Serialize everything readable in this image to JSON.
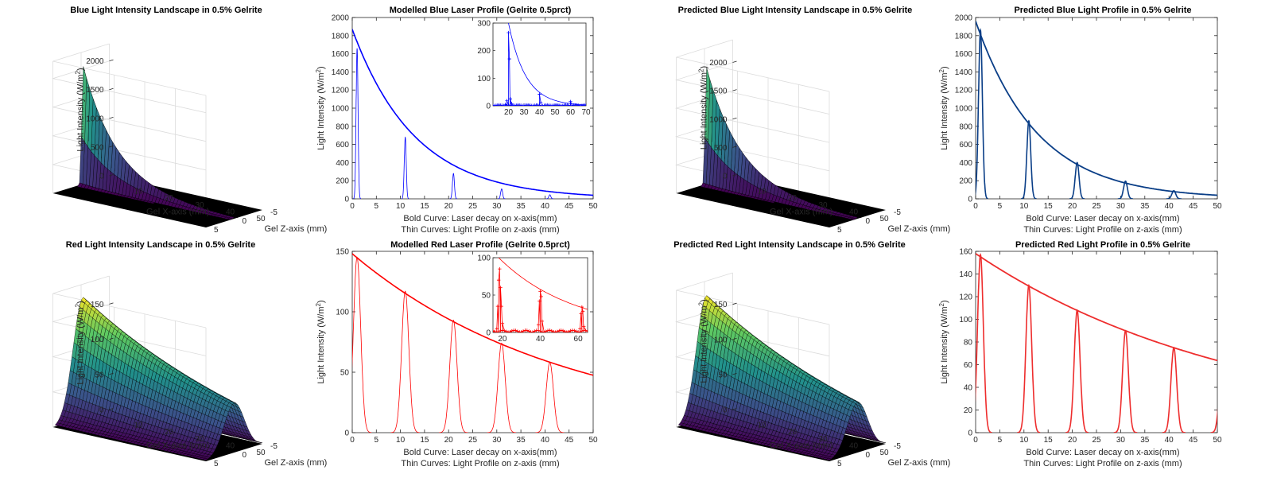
{
  "figure": {
    "background": "#ffffff",
    "blue_color": "#0000ff",
    "navy_color": "#0a3e87",
    "red_color": "#ff0000",
    "red_pred_color": "#ee2d2d",
    "axis_color": "#262626",
    "grid_color": "#dcdcdc",
    "floor_color": "#000000",
    "colormap": [
      "#440154",
      "#3b528b",
      "#21918c",
      "#5ec962",
      "#fde725"
    ]
  },
  "chart_data": [
    {
      "id": "blue-landscape",
      "type": "surface3d",
      "title": "Blue Light Intensity Landscape in 0.5% Gelrite",
      "xlabel": "Gel X-axis (mm)",
      "ylabel": "Gel Z-axis (mm)",
      "zlabel": "Light Intensity (W/m²)",
      "xlim": [
        0,
        50
      ],
      "zaxis_range": [
        -5,
        5
      ],
      "ylim": [
        0,
        2300
      ],
      "xticks": [
        "10",
        "20",
        "30",
        "40",
        "50"
      ],
      "zticks": [
        "5",
        "0",
        "-5"
      ],
      "yticks": [
        "0",
        "500",
        "1000",
        "1500",
        "2000"
      ],
      "peak_value": 2200,
      "decay_length_mm": 11,
      "beam_width_mm": 0.25
    },
    {
      "id": "blue-profile",
      "type": "line",
      "title": "Modelled Blue Laser Profile (Gelrite 0.5prct)",
      "xlabel": "Bold Curve: Laser decay on x-axis(mm)",
      "xlabel2": "Thin Curves: Light Profile on z-axis (mm)",
      "ylabel": "Light Intensity (W/m²)",
      "xlim": [
        0,
        50
      ],
      "ylim": [
        0,
        2000
      ],
      "xticks": [
        "0",
        "5",
        "10",
        "15",
        "20",
        "25",
        "30",
        "35",
        "40",
        "45",
        "50"
      ],
      "yticks": [
        "0",
        "200",
        "400",
        "600",
        "800",
        "1000",
        "1200",
        "1400",
        "1600",
        "1800",
        "2000"
      ],
      "decay": {
        "I0": 1870,
        "length_mm": 13
      },
      "peaks": [
        {
          "x": 1,
          "height": 1660
        },
        {
          "x": 11,
          "height": 680
        },
        {
          "x": 21,
          "height": 280
        },
        {
          "x": 31,
          "height": 110
        },
        {
          "x": 41,
          "height": 45
        }
      ],
      "peak_sigma": 0.2,
      "inset": {
        "xlim": [
          10,
          70
        ],
        "ylim": [
          0,
          300
        ],
        "xticks": [
          "20",
          "30",
          "40",
          "50",
          "60",
          "70"
        ],
        "yticks": [
          "0",
          "100",
          "200",
          "300"
        ],
        "decay": {
          "x0": 20,
          "I0": 300,
          "length_mm": 11
        },
        "points": [
          [
            18,
            5
          ],
          [
            19,
            18
          ],
          [
            20,
            265
          ],
          [
            20.6,
            170
          ],
          [
            21.2,
            25
          ],
          [
            22,
            8
          ],
          [
            40,
            42
          ],
          [
            40.8,
            12
          ],
          [
            60,
            15
          ]
        ]
      }
    },
    {
      "id": "blue-pred-landscape",
      "type": "surface3d",
      "title": "Predicted Blue Light Intensity Landscape in 0.5% Gelrite",
      "xlabel": "Gel X-axis (mm)",
      "ylabel": "Gel Z-axis (mm)",
      "zlabel": "Light Intensity (W/m²)",
      "xlim": [
        0,
        50
      ],
      "zaxis_range": [
        -5,
        5
      ],
      "ylim": [
        0,
        2400
      ],
      "xticks": [
        "10",
        "20",
        "30",
        "40",
        "50"
      ],
      "zticks": [
        "5",
        "0",
        "-5"
      ],
      "yticks": [
        "0",
        "500",
        "1000",
        "1500",
        "2000"
      ],
      "peak_value": 2200,
      "decay_length_mm": 11,
      "beam_width_mm": 0.25
    },
    {
      "id": "blue-pred-profile",
      "type": "line",
      "title": "Predicted Blue Light Profile in 0.5% Gelrite",
      "xlabel": "Bold Curve: Laser decay on x-axis(mm)",
      "xlabel2": "Thin Curves: Light Profile on z-axis (mm)",
      "ylabel": "Light Intensity (W/m²)",
      "xlim": [
        0,
        50
      ],
      "ylim": [
        0,
        2000
      ],
      "xticks": [
        "0",
        "5",
        "10",
        "15",
        "20",
        "25",
        "30",
        "35",
        "40",
        "45",
        "50"
      ],
      "yticks": [
        "0",
        "200",
        "400",
        "600",
        "800",
        "1000",
        "1200",
        "1400",
        "1600",
        "1800",
        "2000"
      ],
      "decay": {
        "I0": 1960,
        "length_mm": 12.8
      },
      "peaks": [
        {
          "x": 1,
          "height": 1860
        },
        {
          "x": 11,
          "height": 860
        },
        {
          "x": 21,
          "height": 400
        },
        {
          "x": 31,
          "height": 195
        },
        {
          "x": 41,
          "height": 90
        }
      ],
      "peak_sigma": 0.4
    },
    {
      "id": "red-landscape",
      "type": "surface3d",
      "title": "Red Light Intensity Landscape in 0.5% Gelrite",
      "xlabel": "Gel X-axis (mm)",
      "ylabel": "Gel Z-axis (mm)",
      "zlabel": "Light Intensity (W/m²)",
      "xlim": [
        0,
        50
      ],
      "zaxis_range": [
        -5,
        5
      ],
      "ylim": [
        0,
        190
      ],
      "xticks": [
        "10",
        "20",
        "30",
        "40",
        "50"
      ],
      "zticks": [
        "5",
        "0",
        "-5"
      ],
      "yticks": [
        "0",
        "50",
        "100",
        "150"
      ],
      "peak_value": 175,
      "decay_length_mm": 55,
      "beam_width_mm": 1.8
    },
    {
      "id": "red-profile",
      "type": "line",
      "title": "Modelled Red Laser Profile (Gelrite 0.5prct)",
      "xlabel": "Bold Curve: Laser decay on x-axis(mm)",
      "xlabel2": "Thin Curves: Light Profile on z-axis (mm)",
      "ylabel": "Light Intensity (W/m²)",
      "xlim": [
        0,
        50
      ],
      "ylim": [
        0,
        150
      ],
      "xticks": [
        "0",
        "5",
        "10",
        "15",
        "20",
        "25",
        "30",
        "35",
        "40",
        "45",
        "50"
      ],
      "yticks": [
        "0",
        "50",
        "100",
        "150"
      ],
      "decay": {
        "I0": 148,
        "length_mm": 44
      },
      "peaks": [
        {
          "x": 1,
          "height": 145
        },
        {
          "x": 11,
          "height": 117
        },
        {
          "x": 21,
          "height": 93
        },
        {
          "x": 31,
          "height": 74
        },
        {
          "x": 41,
          "height": 58
        }
      ],
      "peak_sigma": 0.75,
      "inset": {
        "xlim": [
          15,
          65
        ],
        "ylim": [
          0,
          100
        ],
        "xticks": [
          "20",
          "40",
          "60"
        ],
        "yticks": [
          "0",
          "50",
          "100"
        ],
        "decay": {
          "x0": 18,
          "I0": 100,
          "length_mm": 40
        },
        "points": [
          [
            17,
            5
          ],
          [
            17.5,
            35
          ],
          [
            18,
            70
          ],
          [
            18.5,
            85
          ],
          [
            19,
            60
          ],
          [
            19.5,
            35
          ],
          [
            20,
            12
          ],
          [
            39,
            10
          ],
          [
            39.5,
            42
          ],
          [
            40,
            55
          ],
          [
            40.5,
            48
          ],
          [
            41,
            15
          ],
          [
            61,
            5
          ],
          [
            61.5,
            25
          ],
          [
            62,
            34
          ],
          [
            62.5,
            28
          ],
          [
            63,
            8
          ]
        ]
      }
    },
    {
      "id": "red-pred-landscape",
      "type": "surface3d",
      "title": "Predicted Red Light Intensity Landscape in 0.5% Gelrite",
      "xlabel": "Gel X-axis (mm)",
      "ylabel": "Gel Z-axis (mm)",
      "zlabel": "Light Intensity (W/m²)",
      "xlim": [
        0,
        50
      ],
      "zaxis_range": [
        -5,
        5
      ],
      "ylim": [
        0,
        195
      ],
      "xticks": [
        "10",
        "20",
        "30",
        "40",
        "50"
      ],
      "zticks": [
        "5",
        "0",
        "-5"
      ],
      "yticks": [
        "0",
        "50",
        "100",
        "150"
      ],
      "peak_value": 178,
      "decay_length_mm": 55,
      "beam_width_mm": 1.8
    },
    {
      "id": "red-pred-profile",
      "type": "line",
      "title": "Predicted Red Light Profile in 0.5% Gelrite",
      "xlabel": "Bold Curve: Laser decay on x-axis(mm)",
      "xlabel2": "Thin Curves: Light Profile on z-axis (mm)",
      "ylabel": "Light Intensity (W/m²)",
      "xlim": [
        0,
        50
      ],
      "ylim": [
        0,
        160
      ],
      "xticks": [
        "0",
        "5",
        "10",
        "15",
        "20",
        "25",
        "30",
        "35",
        "40",
        "45",
        "50"
      ],
      "yticks": [
        "0",
        "20",
        "40",
        "60",
        "80",
        "100",
        "120",
        "140",
        "160"
      ],
      "decay": {
        "I0": 158,
        "length_mm": 55
      },
      "peaks": [
        {
          "x": 1,
          "height": 157
        },
        {
          "x": 11,
          "height": 130
        },
        {
          "x": 21,
          "height": 108
        },
        {
          "x": 31,
          "height": 90
        },
        {
          "x": 41,
          "height": 75
        },
        {
          "x": 51,
          "height": 62
        }
      ],
      "peak_sigma": 0.6
    }
  ]
}
